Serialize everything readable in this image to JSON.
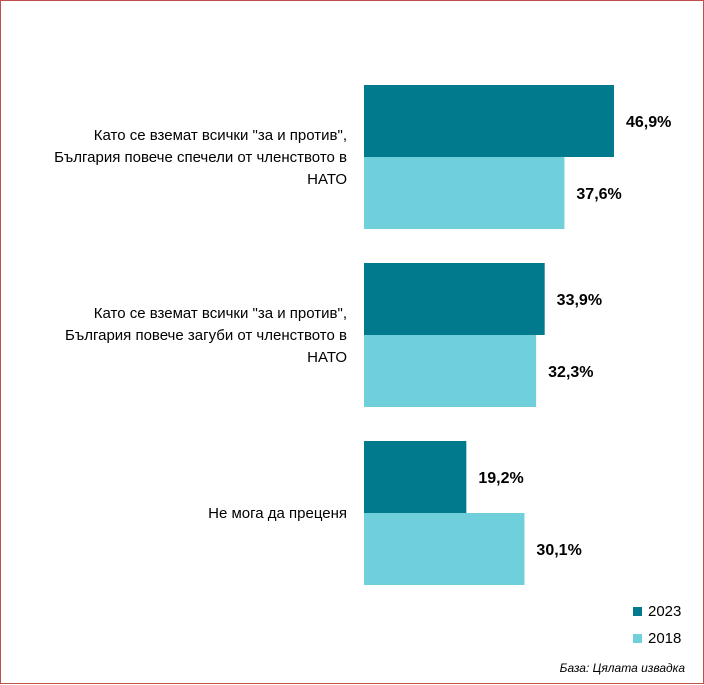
{
  "chart_data": {
    "type": "bar",
    "orientation": "horizontal",
    "categories": [
      "Като се вземат всички \"за и против\", България повече спечели от членството в НАТО",
      "Като се вземат всички \"за и против\", България повече загуби от членството в НАТО",
      "Не мога да преценя"
    ],
    "category_lines": [
      [
        "Като се вземат всички \"за и против\",",
        "България повече спечели от членството в",
        "НАТО"
      ],
      [
        "Като се вземат всички \"за и против\",",
        "България повече загуби от членството в",
        "НАТО"
      ],
      [
        "Не мога да преценя"
      ]
    ],
    "series": [
      {
        "name": "2023",
        "color": "#007a8c",
        "values": [
          46.9,
          33.9,
          19.2
        ],
        "labels": [
          "46,9%",
          "33,9%",
          "19,2%"
        ]
      },
      {
        "name": "2018",
        "color": "#6fcfdb",
        "values": [
          37.6,
          32.3,
          30.1
        ],
        "labels": [
          "37,6%",
          "32,3%",
          "30,1%"
        ]
      }
    ],
    "xlim": [
      0,
      50
    ],
    "grid": false,
    "legend": "bottom-right"
  },
  "source_note": "База: Цялата извадка"
}
